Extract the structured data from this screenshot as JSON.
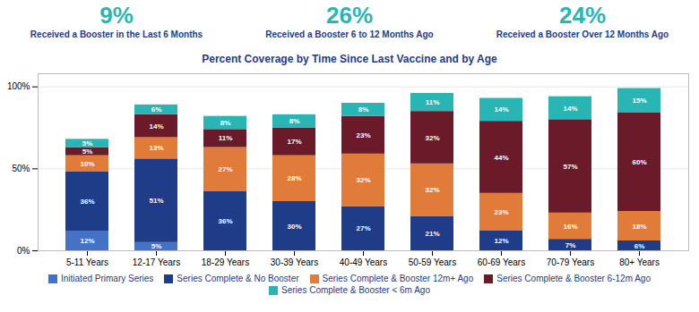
{
  "chart_data": {
    "type": "bar",
    "stacked": true,
    "title": "Percent Coverage by Time Since Last Vaccine and by Age",
    "annotations": [
      {
        "text": "9%",
        "label": "Received a Booster in the Last 6 Months"
      },
      {
        "text": "26%",
        "label": "Received a Booster 6 to 12 Months Ago"
      },
      {
        "text": "24%",
        "label": "Received a Booster Over 12 Months Ago"
      }
    ],
    "categories": [
      "5-11 Years",
      "12-17 Years",
      "18-29 Years",
      "30-39 Years",
      "40-49 Years",
      "50-59 Years",
      "60-69 Years",
      "70-79 Years",
      "80+ Years"
    ],
    "series": [
      {
        "name": "Initiated Primary Series",
        "color": "#4472c4",
        "values": [
          12,
          5,
          0,
          0,
          0,
          0,
          0,
          0,
          0
        ],
        "value_labels": [
          "12%",
          "5%",
          null,
          null,
          null,
          null,
          null,
          null,
          null
        ]
      },
      {
        "name": "Series Complete & No Booster",
        "color": "#1f3c88",
        "values": [
          36,
          51,
          36,
          30,
          27,
          21,
          12,
          7,
          6
        ],
        "value_labels": [
          "36%",
          "51%",
          "36%",
          "30%",
          "27%",
          "21%",
          "12%",
          "7%",
          "6%"
        ]
      },
      {
        "name": "Series Complete & Booster 12m+ Ago",
        "color": "#e07b39",
        "values": [
          10,
          13,
          27,
          28,
          32,
          32,
          23,
          16,
          18
        ],
        "value_labels": [
          "10%",
          "13%",
          "27%",
          "28%",
          "32%",
          "32%",
          "23%",
          "16%",
          "18%"
        ]
      },
      {
        "name": "Series Complete & Booster 6-12m Ago",
        "color": "#6b1a2a",
        "values": [
          5,
          14,
          11,
          17,
          23,
          32,
          44,
          57,
          60
        ],
        "value_labels": [
          "5%",
          "14%",
          "11%",
          "17%",
          "23%",
          "32%",
          "44%",
          "57%",
          "60%"
        ]
      },
      {
        "name": "Series Complete & Booster < 6m Ago",
        "color": "#2ab5b5",
        "values": [
          5,
          6,
          8,
          8,
          8,
          11,
          14,
          14,
          15
        ],
        "value_labels": [
          "5%",
          "6%",
          "8%",
          "8%",
          "8%",
          "11%",
          "14%",
          "14%",
          "15%"
        ]
      }
    ],
    "ylim": [
      0,
      108
    ],
    "yticks": [
      {
        "value": 0,
        "label": "0%"
      },
      {
        "value": 50,
        "label": "50%"
      },
      {
        "value": 100,
        "label": "100%"
      }
    ],
    "grid": true,
    "legend": "bottom",
    "data_labels": true
  }
}
